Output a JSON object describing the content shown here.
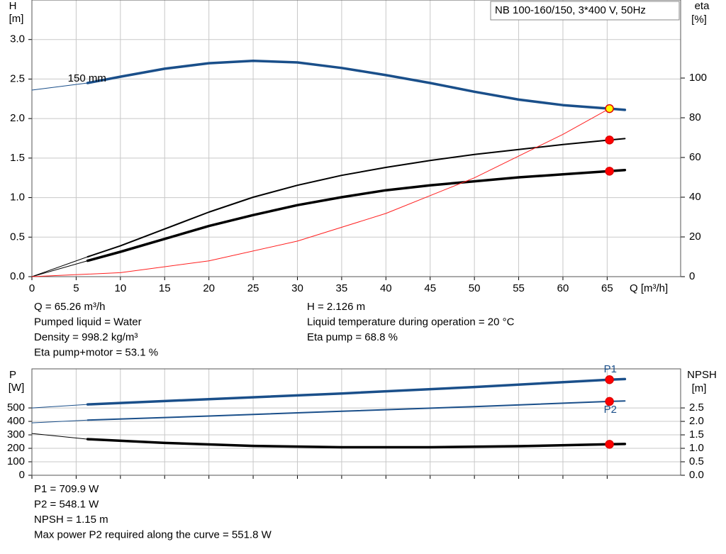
{
  "chart_data": [
    {
      "type": "line",
      "title": "NB 100-160/150, 3*400 V, 50Hz",
      "y_label": "H",
      "y_unit": "[m]",
      "y2_label": "eta",
      "y2_unit": "[%]",
      "x_label": "Q [m³/h]",
      "xlim": [
        0,
        73.3
      ],
      "ylim": [
        0,
        3.5
      ],
      "y2lim": [
        0,
        139.3
      ],
      "xticks": [
        0,
        5,
        10,
        15,
        20,
        25,
        30,
        35,
        40,
        45,
        50,
        55,
        60,
        65
      ],
      "xtick_labels": true,
      "yticks": [
        {
          "value": 0,
          "label": "0.0"
        },
        {
          "value": 0.5,
          "label": "0.5"
        },
        {
          "value": 1,
          "label": "1.0"
        },
        {
          "value": 1.5,
          "label": "1.5"
        },
        {
          "value": 2,
          "label": "2.0"
        },
        {
          "value": 2.5,
          "label": "2.5"
        },
        {
          "value": 3,
          "label": "3.0"
        }
      ],
      "y2ticks": [
        0,
        20,
        40,
        60,
        80,
        100
      ],
      "grid": true,
      "series": [
        {
          "color": "#1a4f8a",
          "style": "thin",
          "x": [
            0,
            6.3
          ],
          "values": [
            2.36,
            2.45
          ]
        },
        {
          "name": "150 mm",
          "color": "#1a4f8a",
          "style": "thick",
          "x": [
            6.3,
            10,
            15,
            20,
            25,
            30,
            35,
            40,
            45,
            50,
            55,
            60,
            65.26,
            67
          ],
          "values": [
            2.45,
            2.53,
            2.63,
            2.7,
            2.73,
            2.71,
            2.64,
            2.55,
            2.45,
            2.34,
            2.24,
            2.17,
            2.126,
            2.11
          ]
        },
        {
          "color": "#000000",
          "style": "thin",
          "axis": "y2",
          "x": [
            0,
            6.3
          ],
          "values": [
            0,
            10
          ]
        },
        {
          "color": "#000000",
          "style": "medium",
          "axis": "y2",
          "x": [
            6.3,
            10,
            15,
            20,
            25,
            30,
            35,
            40,
            45,
            50,
            55,
            60,
            65.26,
            67
          ],
          "values": [
            10,
            15.5,
            24,
            32.5,
            40,
            46,
            51,
            55,
            58.5,
            61.5,
            64,
            66.5,
            68.8,
            69.5
          ]
        },
        {
          "color": "#000000",
          "style": "thin",
          "axis": "y2",
          "x": [
            0,
            6.3
          ],
          "values": [
            0,
            8
          ]
        },
        {
          "color": "#000000",
          "style": "thick",
          "axis": "y2",
          "x": [
            6.3,
            10,
            15,
            20,
            25,
            30,
            35,
            40,
            45,
            50,
            55,
            60,
            65.26,
            67
          ],
          "values": [
            8,
            12.5,
            19,
            25.5,
            31,
            36,
            40,
            43.5,
            46,
            48,
            50,
            51.5,
            53.1,
            53.7
          ]
        },
        {
          "color": "#ff2020",
          "style": "thin",
          "x": [
            0,
            10,
            20,
            30,
            40,
            50,
            60,
            65.26
          ],
          "values": [
            0,
            0.05,
            0.2,
            0.45,
            0.8,
            1.25,
            1.8,
            2.126
          ]
        },
        {
          "marker": true,
          "color": "#ffff00",
          "edge": "#e00000",
          "x": [
            65.26
          ],
          "values": [
            2.126
          ]
        },
        {
          "marker": true,
          "axis": "y2",
          "color": "#ff0000",
          "edge": "#e00000",
          "x": [
            65.26
          ],
          "values": [
            68.8
          ]
        },
        {
          "marker": true,
          "axis": "y2",
          "color": "#ff0000",
          "edge": "#e00000",
          "x": [
            65.26
          ],
          "values": [
            53.1
          ]
        }
      ],
      "info_left": [
        "Q = 65.26 m³/h",
        "Pumped liquid = Water",
        "Density = 998.2 kg/m³",
        "Eta pump+motor = 53.1 %"
      ],
      "info_right": [
        "H = 2.126 m",
        "Liquid temperature during operation = 20 °C",
        "Eta pump = 68.8 %"
      ]
    },
    {
      "type": "line",
      "y_label": "P",
      "y_unit": "[W]",
      "y2_label": "NPSH",
      "y2_unit": "[m]",
      "xlim": [
        0,
        73.3
      ],
      "ylim": [
        0,
        790
      ],
      "y2lim": [
        0,
        3.95
      ],
      "xticks": [
        0,
        5,
        10,
        15,
        20,
        25,
        30,
        35,
        40,
        45,
        50,
        55,
        60,
        65
      ],
      "xtick_labels": false,
      "yticks": [
        0,
        100,
        200,
        300,
        400,
        500
      ],
      "y2ticks": [
        {
          "value": 0,
          "label": "0.0"
        },
        {
          "value": 0.5,
          "label": "0.5"
        },
        {
          "value": 1,
          "label": "1.0"
        },
        {
          "value": 1.5,
          "label": "1.5"
        },
        {
          "value": 2,
          "label": "2.0"
        },
        {
          "value": 2.5,
          "label": "2.5"
        }
      ],
      "grid": true,
      "series": [
        {
          "color": "#1a4f8a",
          "style": "thin",
          "x": [
            0,
            6.3
          ],
          "values": [
            500,
            526
          ]
        },
        {
          "name": "P1",
          "color": "#1a4f8a",
          "style": "thick",
          "x": [
            6.3,
            20,
            35,
            50,
            65.26,
            67
          ],
          "values": [
            526,
            565,
            607,
            655,
            709.9,
            714
          ]
        },
        {
          "color": "#1a4f8a",
          "style": "thin",
          "x": [
            0,
            6.3
          ],
          "values": [
            389,
            410
          ]
        },
        {
          "name": "P2",
          "color": "#1a4f8a",
          "style": "medium",
          "x": [
            6.3,
            20,
            35,
            50,
            65.26,
            67
          ],
          "values": [
            410,
            440,
            475,
            510,
            548.1,
            552
          ]
        },
        {
          "color": "#000000",
          "style": "thin",
          "axis": "y2",
          "x": [
            0,
            6.3
          ],
          "values": [
            1.55,
            1.34
          ]
        },
        {
          "color": "#000000",
          "style": "thick",
          "axis": "y2",
          "x": [
            6.3,
            15,
            25,
            35,
            45,
            55,
            65.26,
            67
          ],
          "values": [
            1.34,
            1.2,
            1.09,
            1.04,
            1.04,
            1.08,
            1.15,
            1.16
          ]
        },
        {
          "marker": true,
          "color": "#ff0000",
          "edge": "#e00000",
          "x": [
            65.26
          ],
          "values": [
            709.9
          ]
        },
        {
          "marker": true,
          "color": "#ff0000",
          "edge": "#e00000",
          "x": [
            65.26
          ],
          "values": [
            548.1
          ]
        },
        {
          "marker": true,
          "axis": "y2",
          "color": "#ff0000",
          "edge": "#e00000",
          "x": [
            65.26
          ],
          "values": [
            1.15
          ]
        }
      ],
      "info_left": [
        "P1 = 709.9 W",
        "P2 = 548.1 W",
        "NPSH = 1.15 m",
        "Max power P2 required along the curve = 551.8 W"
      ]
    }
  ]
}
